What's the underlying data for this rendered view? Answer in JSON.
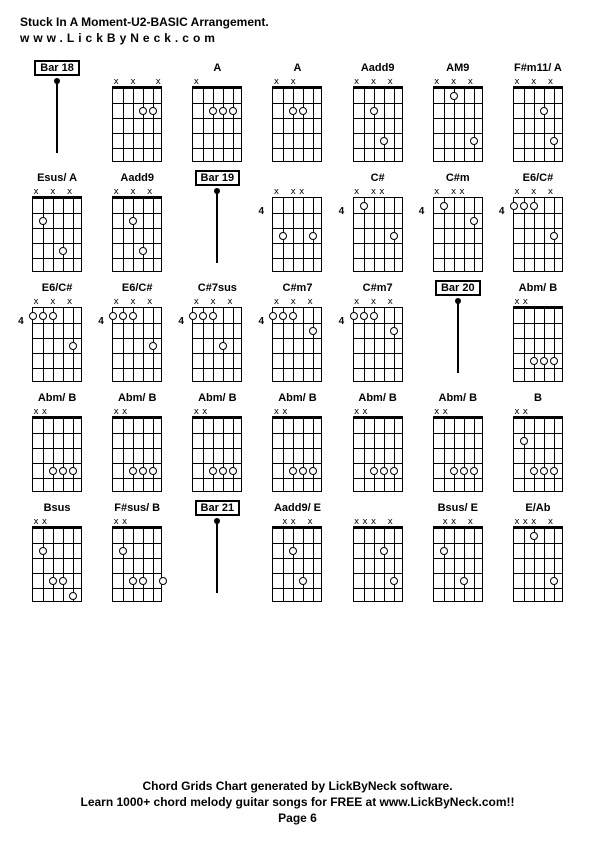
{
  "header": {
    "title": "Stuck In A Moment-U2-BASIC Arrangement.",
    "website": "www.LickByNeck.com"
  },
  "footer": {
    "line1": "Chord Grids Chart generated by LickByNeck software.",
    "line2": "Learn 1000+ chord melody guitar songs for FREE at www.LickByNeck.com!!",
    "page": "Page 6"
  },
  "chords": [
    {
      "label": "Bar 18",
      "boxed": true,
      "type": "bar"
    },
    {
      "label": "",
      "type": "chord",
      "nut": true,
      "topmarks": [
        "x",
        "",
        "x",
        "",
        "",
        "x"
      ],
      "dots": [
        {
          "s": 3,
          "f": 2
        },
        {
          "s": 4,
          "f": 2
        }
      ],
      "fretNum": ""
    },
    {
      "label": "A",
      "type": "chord",
      "nut": true,
      "topmarks": [
        "x",
        "",
        "",
        "",
        "",
        ""
      ],
      "dots": [
        {
          "s": 2,
          "f": 2
        },
        {
          "s": 3,
          "f": 2
        },
        {
          "s": 4,
          "f": 2
        }
      ],
      "fretNum": ""
    },
    {
      "label": "A",
      "type": "chord",
      "nut": true,
      "topmarks": [
        "x",
        "",
        "x",
        "",
        "",
        ""
      ],
      "dots": [
        {
          "s": 2,
          "f": 2
        },
        {
          "s": 3,
          "f": 2
        }
      ],
      "fretNum": ""
    },
    {
      "label": "Aadd9",
      "type": "chord",
      "nut": true,
      "topmarks": [
        "x",
        "",
        "x",
        "",
        "x",
        ""
      ],
      "dots": [
        {
          "s": 2,
          "f": 2
        },
        {
          "s": 3,
          "f": 4
        }
      ],
      "fretNum": ""
    },
    {
      "label": "AM9",
      "type": "chord",
      "nut": true,
      "topmarks": [
        "x",
        "",
        "x",
        "",
        "x",
        ""
      ],
      "dots": [
        {
          "s": 2,
          "f": 1
        },
        {
          "s": 4,
          "f": 4
        }
      ],
      "fretNum": ""
    },
    {
      "label": "F#m11/ A",
      "type": "chord",
      "nut": true,
      "topmarks": [
        "x",
        "",
        "x",
        "",
        "x",
        ""
      ],
      "dots": [
        {
          "s": 3,
          "f": 2
        },
        {
          "s": 4,
          "f": 4
        }
      ],
      "fretNum": ""
    },
    {
      "label": "Esus/ A",
      "type": "chord",
      "nut": true,
      "topmarks": [
        "x",
        "",
        "x",
        "",
        "x",
        ""
      ],
      "dots": [
        {
          "s": 1,
          "f": 2
        },
        {
          "s": 3,
          "f": 4
        }
      ],
      "fretNum": ""
    },
    {
      "label": "Aadd9",
      "type": "chord",
      "nut": true,
      "topmarks": [
        "x",
        "",
        "x",
        "",
        "x",
        ""
      ],
      "dots": [
        {
          "s": 2,
          "f": 2
        },
        {
          "s": 3,
          "f": 4
        }
      ],
      "fretNum": ""
    },
    {
      "label": "Bar 19",
      "boxed": true,
      "type": "bar"
    },
    {
      "label": "",
      "type": "chord",
      "nut": false,
      "topmarks": [
        "x",
        "",
        "x",
        "x",
        "",
        ""
      ],
      "dots": [
        {
          "s": 1,
          "f": 3
        },
        {
          "s": 4,
          "f": 3
        }
      ],
      "fretNum": "4"
    },
    {
      "label": "C#",
      "type": "chord",
      "nut": false,
      "topmarks": [
        "x",
        "",
        "x",
        "x",
        "",
        ""
      ],
      "dots": [
        {
          "s": 1,
          "f": 1
        },
        {
          "s": 4,
          "f": 3
        }
      ],
      "fretNum": "4"
    },
    {
      "label": "C#m",
      "type": "chord",
      "nut": false,
      "topmarks": [
        "x",
        "",
        "x",
        "x",
        "",
        ""
      ],
      "dots": [
        {
          "s": 1,
          "f": 1
        },
        {
          "s": 4,
          "f": 2
        }
      ],
      "fretNum": "4"
    },
    {
      "label": "E6/C#",
      "type": "chord",
      "nut": false,
      "topmarks": [
        "x",
        "",
        "x",
        "",
        "x",
        ""
      ],
      "dots": [
        {
          "s": 0,
          "f": 1
        },
        {
          "s": 1,
          "f": 1
        },
        {
          "s": 2,
          "f": 1
        },
        {
          "s": 4,
          "f": 3
        }
      ],
      "fretNum": "4"
    },
    {
      "label": "E6/C#",
      "type": "chord",
      "nut": false,
      "topmarks": [
        "x",
        "",
        "x",
        "",
        "x",
        ""
      ],
      "dots": [
        {
          "s": 0,
          "f": 1
        },
        {
          "s": 1,
          "f": 1
        },
        {
          "s": 2,
          "f": 1
        },
        {
          "s": 4,
          "f": 3
        }
      ],
      "fretNum": "4"
    },
    {
      "label": "E6/C#",
      "type": "chord",
      "nut": false,
      "topmarks": [
        "x",
        "",
        "x",
        "",
        "x",
        ""
      ],
      "dots": [
        {
          "s": 0,
          "f": 1
        },
        {
          "s": 1,
          "f": 1
        },
        {
          "s": 2,
          "f": 1
        },
        {
          "s": 4,
          "f": 3
        }
      ],
      "fretNum": "4"
    },
    {
      "label": "C#7sus",
      "type": "chord",
      "nut": false,
      "topmarks": [
        "x",
        "",
        "x",
        "",
        "x",
        ""
      ],
      "dots": [
        {
          "s": 0,
          "f": 1
        },
        {
          "s": 1,
          "f": 1
        },
        {
          "s": 2,
          "f": 1
        },
        {
          "s": 3,
          "f": 3
        }
      ],
      "fretNum": "4"
    },
    {
      "label": "C#m7",
      "type": "chord",
      "nut": false,
      "topmarks": [
        "x",
        "",
        "x",
        "",
        "x",
        ""
      ],
      "dots": [
        {
          "s": 0,
          "f": 1
        },
        {
          "s": 1,
          "f": 1
        },
        {
          "s": 2,
          "f": 1
        },
        {
          "s": 4,
          "f": 2
        }
      ],
      "fretNum": "4"
    },
    {
      "label": "C#m7",
      "type": "chord",
      "nut": false,
      "topmarks": [
        "x",
        "",
        "x",
        "",
        "x",
        ""
      ],
      "dots": [
        {
          "s": 0,
          "f": 1
        },
        {
          "s": 1,
          "f": 1
        },
        {
          "s": 2,
          "f": 1
        },
        {
          "s": 4,
          "f": 2
        }
      ],
      "fretNum": "4"
    },
    {
      "label": "Bar 20",
      "boxed": true,
      "type": "bar"
    },
    {
      "label": "Abm/ B",
      "type": "chord",
      "nut": true,
      "topmarks": [
        "x",
        "x",
        "",
        "",
        "",
        ""
      ],
      "dots": [
        {
          "s": 2,
          "f": 4
        },
        {
          "s": 3,
          "f": 4
        },
        {
          "s": 4,
          "f": 4
        }
      ],
      "fretNum": ""
    },
    {
      "label": "Abm/ B",
      "type": "chord",
      "nut": true,
      "topmarks": [
        "x",
        "x",
        "",
        "",
        "",
        ""
      ],
      "dots": [
        {
          "s": 2,
          "f": 4
        },
        {
          "s": 3,
          "f": 4
        },
        {
          "s": 4,
          "f": 4
        }
      ],
      "fretNum": ""
    },
    {
      "label": "Abm/ B",
      "type": "chord",
      "nut": true,
      "topmarks": [
        "x",
        "x",
        "",
        "",
        "",
        ""
      ],
      "dots": [
        {
          "s": 2,
          "f": 4
        },
        {
          "s": 3,
          "f": 4
        },
        {
          "s": 4,
          "f": 4
        }
      ],
      "fretNum": ""
    },
    {
      "label": "Abm/ B",
      "type": "chord",
      "nut": true,
      "topmarks": [
        "x",
        "x",
        "",
        "",
        "",
        ""
      ],
      "dots": [
        {
          "s": 2,
          "f": 4
        },
        {
          "s": 3,
          "f": 4
        },
        {
          "s": 4,
          "f": 4
        }
      ],
      "fretNum": ""
    },
    {
      "label": "Abm/ B",
      "type": "chord",
      "nut": true,
      "topmarks": [
        "x",
        "x",
        "",
        "",
        "",
        ""
      ],
      "dots": [
        {
          "s": 2,
          "f": 4
        },
        {
          "s": 3,
          "f": 4
        },
        {
          "s": 4,
          "f": 4
        }
      ],
      "fretNum": ""
    },
    {
      "label": "Abm/ B",
      "type": "chord",
      "nut": true,
      "topmarks": [
        "x",
        "x",
        "",
        "",
        "",
        ""
      ],
      "dots": [
        {
          "s": 2,
          "f": 4
        },
        {
          "s": 3,
          "f": 4
        },
        {
          "s": 4,
          "f": 4
        }
      ],
      "fretNum": ""
    },
    {
      "label": "Abm/ B",
      "type": "chord",
      "nut": true,
      "topmarks": [
        "x",
        "x",
        "",
        "",
        "",
        ""
      ],
      "dots": [
        {
          "s": 2,
          "f": 4
        },
        {
          "s": 3,
          "f": 4
        },
        {
          "s": 4,
          "f": 4
        }
      ],
      "fretNum": ""
    },
    {
      "label": "B",
      "type": "chord",
      "nut": true,
      "topmarks": [
        "x",
        "x",
        "",
        "",
        "",
        ""
      ],
      "dots": [
        {
          "s": 1,
          "f": 2
        },
        {
          "s": 2,
          "f": 4
        },
        {
          "s": 3,
          "f": 4
        },
        {
          "s": 4,
          "f": 4
        }
      ],
      "fretNum": ""
    },
    {
      "label": "Bsus",
      "type": "chord",
      "nut": true,
      "topmarks": [
        "x",
        "x",
        "",
        "",
        "",
        ""
      ],
      "dots": [
        {
          "s": 1,
          "f": 2
        },
        {
          "s": 2,
          "f": 4
        },
        {
          "s": 3,
          "f": 4
        },
        {
          "s": 4,
          "f": 5
        }
      ],
      "fretNum": ""
    },
    {
      "label": "F#sus/ B",
      "type": "chord",
      "nut": true,
      "topmarks": [
        "x",
        "x",
        "",
        "",
        "",
        ""
      ],
      "dots": [
        {
          "s": 1,
          "f": 2
        },
        {
          "s": 2,
          "f": 4
        },
        {
          "s": 3,
          "f": 4
        },
        {
          "s": 5,
          "f": 4
        }
      ],
      "fretNum": ""
    },
    {
      "label": "Bar 21",
      "boxed": true,
      "type": "bar"
    },
    {
      "label": "Aadd9/ E",
      "type": "chord",
      "nut": true,
      "topmarks": [
        "",
        "x",
        "x",
        "",
        "x",
        ""
      ],
      "dots": [
        {
          "s": 2,
          "f": 2
        },
        {
          "s": 3,
          "f": 4
        }
      ],
      "fretNum": ""
    },
    {
      "label": "",
      "type": "chord",
      "nut": true,
      "topmarks": [
        "x",
        "x",
        "x",
        "",
        "x",
        ""
      ],
      "dots": [
        {
          "s": 3,
          "f": 2
        },
        {
          "s": 4,
          "f": 4
        }
      ],
      "fretNum": ""
    },
    {
      "label": "Bsus/ E",
      "type": "chord",
      "nut": true,
      "topmarks": [
        "",
        "x",
        "x",
        "",
        "x",
        ""
      ],
      "dots": [
        {
          "s": 1,
          "f": 2
        },
        {
          "s": 3,
          "f": 4
        }
      ],
      "fretNum": ""
    },
    {
      "label": "E/Ab",
      "type": "chord",
      "nut": true,
      "topmarks": [
        "x",
        "x",
        "x",
        "",
        "x",
        ""
      ],
      "dots": [
        {
          "s": 2,
          "f": 1
        },
        {
          "s": 4,
          "f": 4
        }
      ],
      "fretNum": ""
    }
  ],
  "style": {
    "strings": 6,
    "frets": 5,
    "stringPositions": [
      0,
      10,
      20,
      30,
      40,
      50
    ],
    "fretPositions": [
      0,
      15,
      30,
      45,
      60,
      75
    ]
  }
}
